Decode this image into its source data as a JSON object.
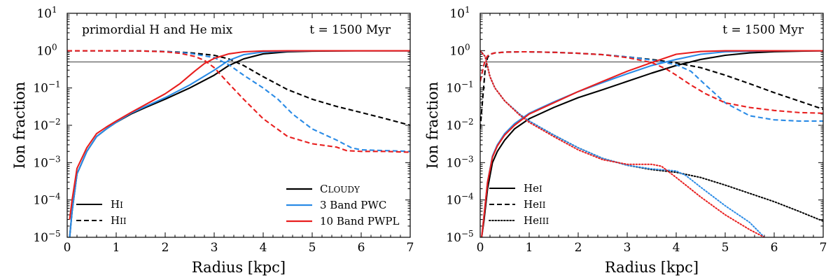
{
  "chart_data": [
    {
      "type": "line",
      "panel": "left",
      "xlabel": "Radius [kpc]",
      "ylabel": "Ion fraction",
      "xlim": [
        0,
        7
      ],
      "ylim": [
        1e-05,
        10
      ],
      "yscale": "log",
      "xticks": [
        "0",
        "1",
        "2",
        "3",
        "4",
        "5",
        "6",
        "7"
      ],
      "yticks": [
        "10^-5",
        "10^-4",
        "10^-3",
        "10^-2",
        "10^-1",
        "10^0",
        "10^1"
      ],
      "reference_line_y": 0.5,
      "annotations": {
        "left": "primordial H and He mix",
        "right": "t = 1500 Myr"
      },
      "legend_styles": [
        {
          "label": "HI",
          "dash": "solid"
        },
        {
          "label": "HII",
          "dash": "dashed"
        }
      ],
      "legend_models": [
        {
          "label": "CLOUDY",
          "color": "#000000"
        },
        {
          "label": "3 Band PWC",
          "color": "#2a8be6"
        },
        {
          "label": "10 Band PWPL",
          "color": "#e81e1e"
        }
      ],
      "series": [
        {
          "name": "HI (CLOUDY)",
          "color": "#000000",
          "dash": "solid",
          "x": [
            0.05,
            0.1,
            0.2,
            0.4,
            0.6,
            0.8,
            1.0,
            1.3,
            1.6,
            2.0,
            2.5,
            3.0,
            3.3,
            3.6,
            4.0,
            4.5,
            5.0,
            6.0,
            7.0
          ],
          "y": [
            1e-05,
            5e-05,
            0.0005,
            0.002,
            0.005,
            0.008,
            0.012,
            0.02,
            0.03,
            0.05,
            0.1,
            0.22,
            0.4,
            0.6,
            0.82,
            0.93,
            0.97,
            0.99,
            0.99
          ]
        },
        {
          "name": "HII (CLOUDY)",
          "color": "#000000",
          "dash": "dashed",
          "x": [
            0.0,
            0.5,
            1.0,
            1.5,
            2.0,
            2.5,
            3.0,
            3.3,
            3.6,
            4.0,
            4.5,
            5.0,
            5.5,
            6.0,
            6.5,
            7.0
          ],
          "y": [
            0.99,
            0.99,
            0.99,
            0.98,
            0.95,
            0.88,
            0.75,
            0.6,
            0.4,
            0.2,
            0.09,
            0.05,
            0.032,
            0.022,
            0.015,
            0.01
          ]
        },
        {
          "name": "HI (3 Band PWC)",
          "color": "#2a8be6",
          "dash": "solid",
          "x": [
            0.05,
            0.1,
            0.2,
            0.4,
            0.6,
            0.8,
            1.0,
            1.3,
            1.6,
            2.0,
            2.5,
            3.0,
            3.3,
            3.6,
            4.0,
            4.5,
            5.0,
            6.0,
            7.0
          ],
          "y": [
            1e-05,
            5e-05,
            0.0005,
            0.002,
            0.005,
            0.008,
            0.012,
            0.021,
            0.032,
            0.055,
            0.12,
            0.3,
            0.55,
            0.78,
            0.92,
            0.97,
            0.99,
            0.99,
            0.99
          ]
        },
        {
          "name": "HII (3 Band PWC)",
          "color": "#2a8be6",
          "dash": "dashed",
          "x": [
            0.0,
            0.5,
            1.0,
            1.5,
            2.0,
            2.5,
            3.0,
            3.3,
            3.6,
            4.0,
            4.3,
            4.6,
            5.0,
            5.5,
            5.8,
            6.0,
            6.5,
            7.0
          ],
          "y": [
            0.99,
            0.99,
            0.99,
            0.98,
            0.95,
            0.85,
            0.65,
            0.42,
            0.22,
            0.1,
            0.05,
            0.02,
            0.008,
            0.004,
            0.0025,
            0.0022,
            0.0021,
            0.002
          ]
        },
        {
          "name": "HI (10 Band PWPL)",
          "color": "#e81e1e",
          "dash": "solid",
          "x": [
            0.05,
            0.1,
            0.2,
            0.4,
            0.6,
            0.8,
            1.0,
            1.3,
            1.6,
            2.0,
            2.3,
            2.6,
            2.8,
            3.0,
            3.3,
            3.6,
            4.0,
            4.5,
            5.0,
            6.0,
            7.0
          ],
          "y": [
            3e-05,
            0.0001,
            0.0007,
            0.0025,
            0.006,
            0.009,
            0.013,
            0.022,
            0.036,
            0.07,
            0.13,
            0.28,
            0.45,
            0.62,
            0.82,
            0.93,
            0.98,
            0.99,
            0.99,
            0.99,
            0.99
          ]
        },
        {
          "name": "HII (10 Band PWPL)",
          "color": "#e81e1e",
          "dash": "dashed",
          "x": [
            0.0,
            0.5,
            1.0,
            1.5,
            2.0,
            2.3,
            2.6,
            2.8,
            3.0,
            3.3,
            3.6,
            4.0,
            4.5,
            5.0,
            5.5,
            5.7,
            6.0,
            6.5,
            7.0
          ],
          "y": [
            0.99,
            0.99,
            0.99,
            0.98,
            0.93,
            0.85,
            0.7,
            0.55,
            0.35,
            0.13,
            0.05,
            0.015,
            0.005,
            0.0032,
            0.0026,
            0.0021,
            0.002,
            0.002,
            0.0019
          ]
        }
      ]
    },
    {
      "type": "line",
      "panel": "right",
      "xlabel": "Radius [kpc]",
      "ylabel": "Ion fraction",
      "xlim": [
        0,
        7
      ],
      "ylim": [
        1e-05,
        10
      ],
      "yscale": "log",
      "xticks": [
        "0",
        "1",
        "2",
        "3",
        "4",
        "5",
        "6",
        "7"
      ],
      "yticks": [
        "10^-5",
        "10^-4",
        "10^-3",
        "10^-2",
        "10^-1",
        "10^0",
        "10^1"
      ],
      "reference_line_y": 0.5,
      "annotations": {
        "right": "t = 1500 Myr"
      },
      "legend_styles": [
        {
          "label": "HeI",
          "dash": "solid"
        },
        {
          "label": "HeII",
          "dash": "dashed"
        },
        {
          "label": "HeIII",
          "dash": "dotted"
        }
      ],
      "series": [
        {
          "name": "HeI (CLOUDY)",
          "color": "#000000",
          "dash": "solid",
          "x": [
            0.03,
            0.08,
            0.15,
            0.25,
            0.35,
            0.5,
            0.7,
            1.0,
            1.5,
            2.0,
            2.5,
            3.0,
            3.5,
            4.0,
            4.5,
            5.0,
            5.5,
            6.0,
            7.0
          ],
          "y": [
            1e-05,
            3e-05,
            0.0002,
            0.001,
            0.002,
            0.004,
            0.008,
            0.015,
            0.03,
            0.055,
            0.09,
            0.15,
            0.25,
            0.4,
            0.58,
            0.75,
            0.87,
            0.94,
            0.99
          ]
        },
        {
          "name": "HeII (CLOUDY)",
          "color": "#000000",
          "dash": "dashed",
          "x": [
            0.0,
            0.05,
            0.1,
            0.15,
            0.2,
            0.3,
            0.5,
            0.8,
            1.0,
            1.5,
            2.0,
            2.5,
            3.0,
            3.5,
            4.0,
            4.5,
            5.0,
            5.5,
            6.0,
            6.5,
            7.0
          ],
          "y": [
            0.008,
            0.05,
            0.3,
            0.65,
            0.8,
            0.87,
            0.91,
            0.93,
            0.93,
            0.9,
            0.85,
            0.78,
            0.68,
            0.58,
            0.47,
            0.35,
            0.22,
            0.13,
            0.075,
            0.045,
            0.027
          ]
        },
        {
          "name": "HeIII (CLOUDY)",
          "color": "#000000",
          "dash": "dotted",
          "x": [
            0.0,
            0.1,
            0.2,
            0.3,
            0.5,
            0.8,
            1.0,
            1.5,
            2.0,
            2.5,
            3.0,
            3.5,
            4.0,
            4.5,
            5.0,
            5.5,
            6.0,
            6.5,
            7.0
          ],
          "y": [
            0.99,
            0.7,
            0.2,
            0.1,
            0.045,
            0.02,
            0.013,
            0.0055,
            0.0025,
            0.0013,
            0.00085,
            0.00065,
            0.00055,
            0.0004,
            0.00025,
            0.00015,
            9e-05,
            5e-05,
            2.7e-05
          ]
        },
        {
          "name": "HeI (3 Band PWC)",
          "color": "#2a8be6",
          "dash": "solid",
          "x": [
            0.03,
            0.08,
            0.15,
            0.25,
            0.35,
            0.5,
            0.7,
            1.0,
            1.5,
            2.0,
            2.5,
            3.0,
            3.5,
            4.0,
            4.5,
            5.0,
            6.0,
            7.0
          ],
          "y": [
            1e-05,
            4e-05,
            0.0003,
            0.0015,
            0.003,
            0.006,
            0.011,
            0.021,
            0.042,
            0.08,
            0.14,
            0.24,
            0.4,
            0.58,
            0.8,
            0.93,
            0.99,
            0.99
          ]
        },
        {
          "name": "HeII (3 Band PWC)",
          "color": "#2a8be6",
          "dash": "dashed",
          "x": [
            0.0,
            0.05,
            0.1,
            0.15,
            0.2,
            0.3,
            0.5,
            0.8,
            1.0,
            1.5,
            2.0,
            2.5,
            3.0,
            3.5,
            4.0,
            4.3,
            4.6,
            5.0,
            5.5,
            6.0,
            6.5,
            7.0
          ],
          "y": [
            0.15,
            0.3,
            0.55,
            0.72,
            0.8,
            0.87,
            0.91,
            0.93,
            0.93,
            0.9,
            0.85,
            0.78,
            0.68,
            0.56,
            0.42,
            0.28,
            0.12,
            0.04,
            0.018,
            0.014,
            0.013,
            0.013
          ]
        },
        {
          "name": "HeIII (3 Band PWC)",
          "color": "#2a8be6",
          "dash": "dotted",
          "x": [
            0.0,
            0.1,
            0.2,
            0.3,
            0.5,
            0.8,
            1.0,
            1.5,
            2.0,
            2.5,
            3.0,
            3.5,
            4.0,
            4.2,
            4.5,
            5.0,
            5.5,
            5.8
          ],
          "y": [
            0.99,
            0.7,
            0.2,
            0.1,
            0.045,
            0.02,
            0.013,
            0.0055,
            0.0025,
            0.0013,
            0.00085,
            0.00068,
            0.0006,
            0.00045,
            0.00022,
            7e-05,
            2.5e-05,
            1e-05
          ]
        },
        {
          "name": "HeI (10 Band PWPL)",
          "color": "#e81e1e",
          "dash": "solid",
          "x": [
            0.03,
            0.08,
            0.15,
            0.25,
            0.35,
            0.5,
            0.7,
            1.0,
            1.5,
            2.0,
            2.5,
            3.0,
            3.5,
            4.0,
            4.5,
            5.0,
            6.0,
            7.0
          ],
          "y": [
            1e-05,
            4e-05,
            0.0003,
            0.0014,
            0.0028,
            0.0055,
            0.01,
            0.02,
            0.04,
            0.08,
            0.15,
            0.28,
            0.48,
            0.8,
            0.95,
            0.99,
            0.99,
            0.99
          ]
        },
        {
          "name": "HeII (10 Band PWPL)",
          "color": "#e81e1e",
          "dash": "dashed",
          "x": [
            0.0,
            0.05,
            0.1,
            0.15,
            0.2,
            0.3,
            0.5,
            0.8,
            1.0,
            1.5,
            2.0,
            2.5,
            3.0,
            3.5,
            3.8,
            4.0,
            4.3,
            4.6,
            5.0,
            5.5,
            6.0,
            6.5,
            7.0
          ],
          "y": [
            0.15,
            0.3,
            0.55,
            0.72,
            0.8,
            0.87,
            0.91,
            0.93,
            0.93,
            0.9,
            0.85,
            0.78,
            0.65,
            0.48,
            0.32,
            0.22,
            0.12,
            0.07,
            0.04,
            0.03,
            0.025,
            0.022,
            0.021
          ]
        },
        {
          "name": "HeIII (10 Band PWPL)",
          "color": "#e81e1e",
          "dash": "dotted",
          "x": [
            0.0,
            0.1,
            0.2,
            0.3,
            0.5,
            0.8,
            1.0,
            1.5,
            2.0,
            2.5,
            3.0,
            3.5,
            3.7,
            4.0,
            4.5,
            5.0,
            5.5,
            5.8
          ],
          "y": [
            0.99,
            0.7,
            0.2,
            0.1,
            0.045,
            0.019,
            0.012,
            0.005,
            0.0022,
            0.0012,
            0.0009,
            0.0009,
            0.0008,
            0.0004,
            0.00012,
            4e-05,
            1.6e-05,
            1e-05
          ]
        }
      ]
    }
  ]
}
